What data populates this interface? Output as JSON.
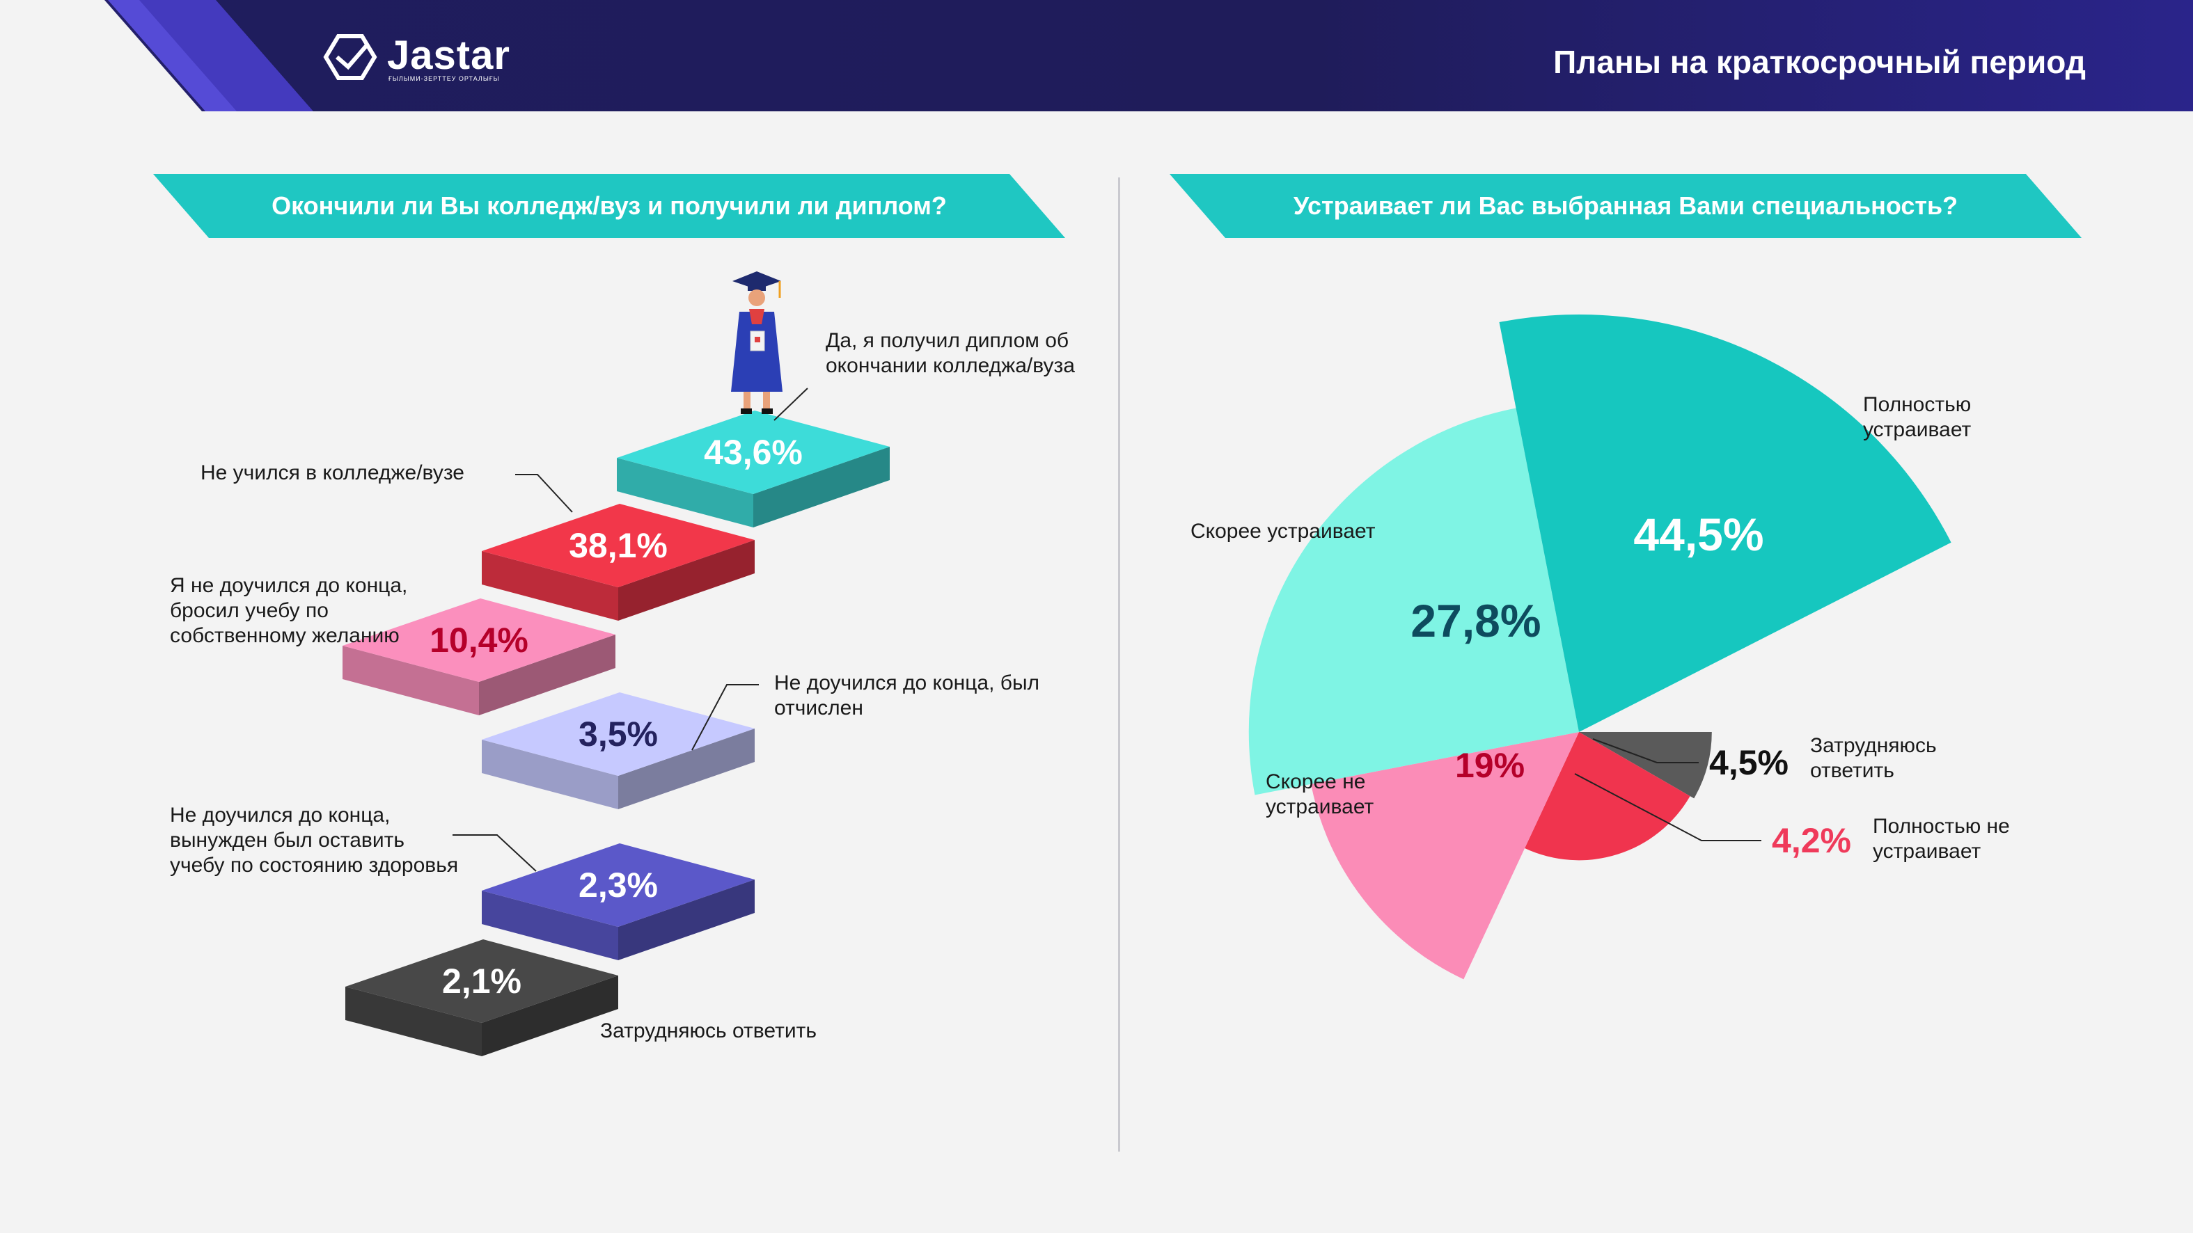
{
  "header": {
    "logo_text": "Jastar",
    "logo_subtitle": "ҒЫЛЫМИ-ЗЕРТТЕУ ОРТАЛЫҒЫ",
    "page_title": "Планы на краткосрочный период"
  },
  "colors": {
    "header_bg": "#1f1d5e",
    "banner": "#1fc7c2",
    "stair_teal": "#3ddcd9",
    "stair_red": "#f2374a",
    "stair_pink": "#fb8fbd",
    "stair_lavender": "#c6c9ff",
    "stair_indigo": "#5b58c9",
    "stair_dark": "#484848",
    "pie_teal": "#16c7bf",
    "pie_mint": "#7ff4e4",
    "pie_pink": "#fb8cb7",
    "pie_red": "#f0344e",
    "pie_gray": "#5a5a5a"
  },
  "icons": [
    "jastar-logo-icon",
    "graduate-icon"
  ],
  "chart_data": [
    {
      "type": "bar",
      "style": "isometric-stairs",
      "title": "Окончили ли Вы колледж/вуз и получили ли диплом?",
      "series": [
        {
          "label": "Да, я получил диплом об окончании колледжа/вуза",
          "value": 43.6,
          "value_label": "43,6%"
        },
        {
          "label": "Не учился в колледже/вузе",
          "value": 38.1,
          "value_label": "38,1%"
        },
        {
          "label": "Я не доучился до конца, бросил учебу по собственному желанию",
          "value": 10.4,
          "value_label": "10,4%"
        },
        {
          "label": "Не доучился до конца, был отчислен",
          "value": 3.5,
          "value_label": "3,5%"
        },
        {
          "label": "Не доучился до конца, вынужден был оставить учебу по состоянию здоровья",
          "value": 2.3,
          "value_label": "2,3%"
        },
        {
          "label": "Затрудняюсь ответить",
          "value": 2.1,
          "value_label": "2,1%"
        }
      ]
    },
    {
      "type": "pie",
      "style": "polar-area",
      "title": "Устраивает ли Вас выбранная Вами специальность?",
      "slices": [
        {
          "label": "Полностью устраивает",
          "value": 44.5,
          "value_label": "44,5%"
        },
        {
          "label": "Скорее устраивает",
          "value": 27.8,
          "value_label": "27,8%"
        },
        {
          "label": "Скорее не устраивает",
          "value": 19,
          "value_label": "19%"
        },
        {
          "label": "Полностью не устраивает",
          "value": 4.2,
          "value_label": "4,2%"
        },
        {
          "label": "Затрудняюсь ответить",
          "value": 4.5,
          "value_label": "4,5%"
        }
      ]
    }
  ]
}
